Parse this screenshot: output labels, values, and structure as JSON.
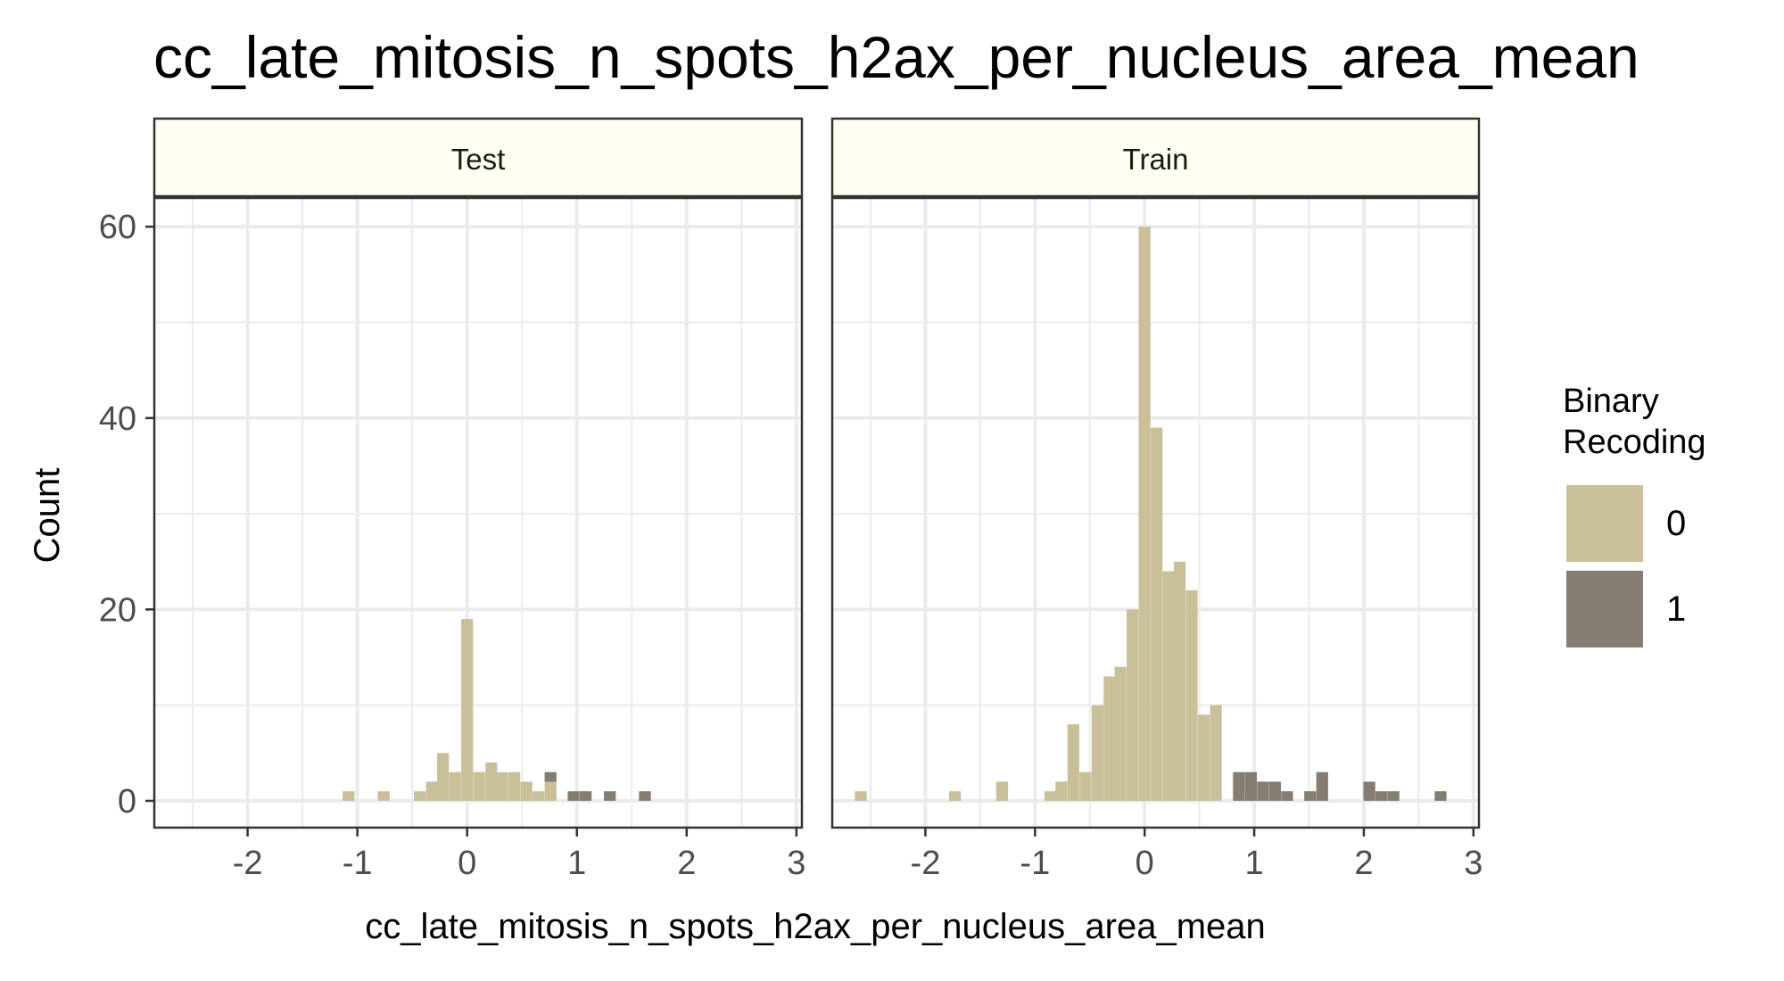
{
  "chart_data": {
    "type": "bar",
    "title": "cc_late_mitosis_n_spots_h2ax_per_nucleus_area_mean",
    "xlabel": "cc_late_mitosis_n_spots_h2ax_per_nucleus_area_mean",
    "ylabel": "Count",
    "xlim": [
      -2.85,
      3.05
    ],
    "ylim": [
      -2.8,
      63
    ],
    "x_ticks": [
      -2,
      -1,
      0,
      1,
      2,
      3
    ],
    "x_tick_labels": [
      "-2",
      "-1",
      "0",
      "1",
      "2",
      "3"
    ],
    "y_ticks": [
      0,
      20,
      40,
      60
    ],
    "y_tick_labels": [
      "0",
      "20",
      "40",
      "60"
    ],
    "grid": true,
    "bin_width": 0.108,
    "legend": {
      "title": "Binary\nRecoding",
      "position": "right",
      "entries": [
        {
          "label": "0",
          "color": "#c9c09a"
        },
        {
          "label": "1",
          "color": "#857d71"
        }
      ]
    },
    "colors": {
      "0": "#c9c09a",
      "1": "#857d71",
      "strip": "#fffff2",
      "grid": "#ebebeb"
    },
    "panels": [
      {
        "label": "Test",
        "bins": [
          {
            "x": -1.08,
            "y": 1,
            "group": "0"
          },
          {
            "x": -0.76,
            "y": 1,
            "group": "0"
          },
          {
            "x": -0.43,
            "y": 1,
            "group": "0"
          },
          {
            "x": -0.32,
            "y": 2,
            "group": "0"
          },
          {
            "x": -0.22,
            "y": 5,
            "group": "0"
          },
          {
            "x": -0.11,
            "y": 3,
            "group": "0"
          },
          {
            "x": 0.0,
            "y": 19,
            "group": "0"
          },
          {
            "x": 0.11,
            "y": 3,
            "group": "0"
          },
          {
            "x": 0.22,
            "y": 4,
            "group": "0"
          },
          {
            "x": 0.32,
            "y": 3,
            "group": "0"
          },
          {
            "x": 0.43,
            "y": 3,
            "group": "0"
          },
          {
            "x": 0.54,
            "y": 2,
            "group": "0"
          },
          {
            "x": 0.65,
            "y": 1,
            "group": "0"
          },
          {
            "x": 0.76,
            "y": 2,
            "group": "0"
          },
          {
            "x": 0.76,
            "y": 1,
            "group": "1"
          },
          {
            "x": 0.97,
            "y": 1,
            "group": "1"
          },
          {
            "x": 1.08,
            "y": 1,
            "group": "1"
          },
          {
            "x": 1.3,
            "y": 1,
            "group": "1"
          },
          {
            "x": 1.62,
            "y": 1,
            "group": "1"
          }
        ]
      },
      {
        "label": "Train",
        "bins": [
          {
            "x": -2.59,
            "y": 1,
            "group": "0"
          },
          {
            "x": -1.73,
            "y": 1,
            "group": "0"
          },
          {
            "x": -1.3,
            "y": 2,
            "group": "0"
          },
          {
            "x": -0.86,
            "y": 1,
            "group": "0"
          },
          {
            "x": -0.76,
            "y": 2,
            "group": "0"
          },
          {
            "x": -0.65,
            "y": 8,
            "group": "0"
          },
          {
            "x": -0.54,
            "y": 3,
            "group": "0"
          },
          {
            "x": -0.43,
            "y": 10,
            "group": "0"
          },
          {
            "x": -0.32,
            "y": 13,
            "group": "0"
          },
          {
            "x": -0.22,
            "y": 14,
            "group": "0"
          },
          {
            "x": -0.11,
            "y": 20,
            "group": "0"
          },
          {
            "x": 0.0,
            "y": 60,
            "group": "0"
          },
          {
            "x": 0.11,
            "y": 39,
            "group": "0"
          },
          {
            "x": 0.22,
            "y": 24,
            "group": "0"
          },
          {
            "x": 0.32,
            "y": 25,
            "group": "0"
          },
          {
            "x": 0.43,
            "y": 22,
            "group": "0"
          },
          {
            "x": 0.54,
            "y": 9,
            "group": "0"
          },
          {
            "x": 0.65,
            "y": 10,
            "group": "0"
          },
          {
            "x": 0.86,
            "y": 3,
            "group": "1"
          },
          {
            "x": 0.97,
            "y": 3,
            "group": "1"
          },
          {
            "x": 1.08,
            "y": 2,
            "group": "1"
          },
          {
            "x": 1.19,
            "y": 2,
            "group": "1"
          },
          {
            "x": 1.3,
            "y": 1,
            "group": "1"
          },
          {
            "x": 1.51,
            "y": 1,
            "group": "1"
          },
          {
            "x": 1.62,
            "y": 3,
            "group": "1"
          },
          {
            "x": 2.05,
            "y": 2,
            "group": "1"
          },
          {
            "x": 2.16,
            "y": 1,
            "group": "1"
          },
          {
            "x": 2.27,
            "y": 1,
            "group": "1"
          },
          {
            "x": 2.7,
            "y": 1,
            "group": "1"
          }
        ]
      }
    ]
  }
}
